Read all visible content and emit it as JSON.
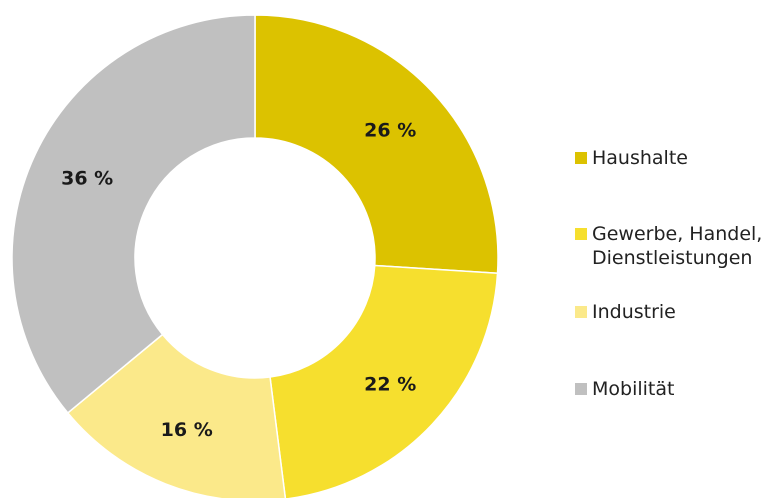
{
  "chart_data": {
    "type": "donut",
    "categories": [
      "Haushalte",
      "Gewerbe, Handel, Dienstleistungen",
      "Industrie",
      "Mobilität"
    ],
    "values": [
      26,
      22,
      16,
      36
    ],
    "value_labels": [
      "26 %",
      "22 %",
      "16 %",
      "36 %"
    ],
    "colors": [
      "#dcc200",
      "#f6df2e",
      "#fbe98a",
      "#c0c0c0"
    ],
    "legend": "right"
  }
}
